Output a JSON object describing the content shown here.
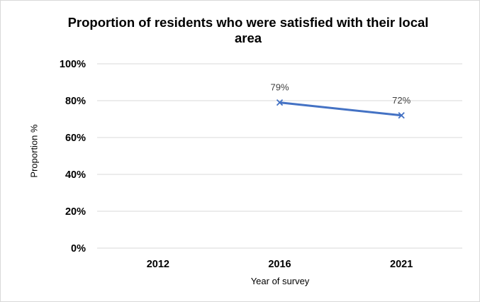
{
  "colors": {
    "series": "#4472c4",
    "grid": "#d9d9d9",
    "frame": "#d9d9d9"
  },
  "chart_data": {
    "type": "line",
    "title": "Proportion of residents who were satisfied with their local area",
    "xlabel": "Year of survey",
    "ylabel": "Proportion %",
    "categories": [
      "2012",
      "2016",
      "2021"
    ],
    "ylim": [
      0,
      100
    ],
    "yticks": [
      "0%",
      "20%",
      "40%",
      "60%",
      "80%",
      "100%"
    ],
    "grid": true,
    "legend": "none",
    "series": [
      {
        "values": [
          null,
          79,
          72
        ],
        "data_labels": [
          "",
          "79%",
          "72%"
        ],
        "marker": "x"
      }
    ]
  }
}
